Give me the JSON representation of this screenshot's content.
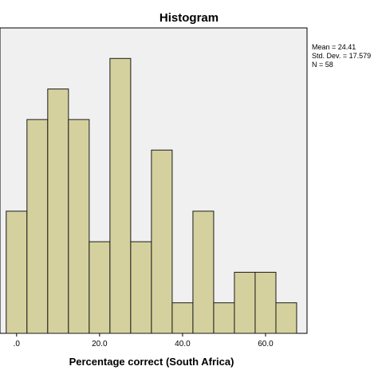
{
  "chart_data": {
    "type": "bar",
    "title": "Histogram",
    "xlabel": "Percentage correct (South Africa)",
    "ylabel": "",
    "bin_width": 5,
    "x_start": -2.5,
    "bin_counts": [
      4,
      7,
      8,
      7,
      3,
      9,
      3,
      6,
      1,
      4,
      1,
      2,
      2,
      1
    ],
    "xlim": [
      -4,
      70
    ],
    "ylim": [
      0,
      10
    ],
    "x_ticks": [
      {
        "value": 0,
        "label": ".0"
      },
      {
        "value": 20,
        "label": "20.0"
      },
      {
        "value": 40,
        "label": "40.0"
      },
      {
        "value": 60,
        "label": "60.0"
      }
    ],
    "grid": false,
    "bar_fill": "#d5d19e",
    "bar_stroke": "#1a1a1a",
    "plot_background": "#f0f0f0",
    "legend": {
      "placement": "right",
      "lines": [
        "Mean = 24.41",
        "Std. Dev. = 17.579",
        "N = 58"
      ]
    }
  }
}
